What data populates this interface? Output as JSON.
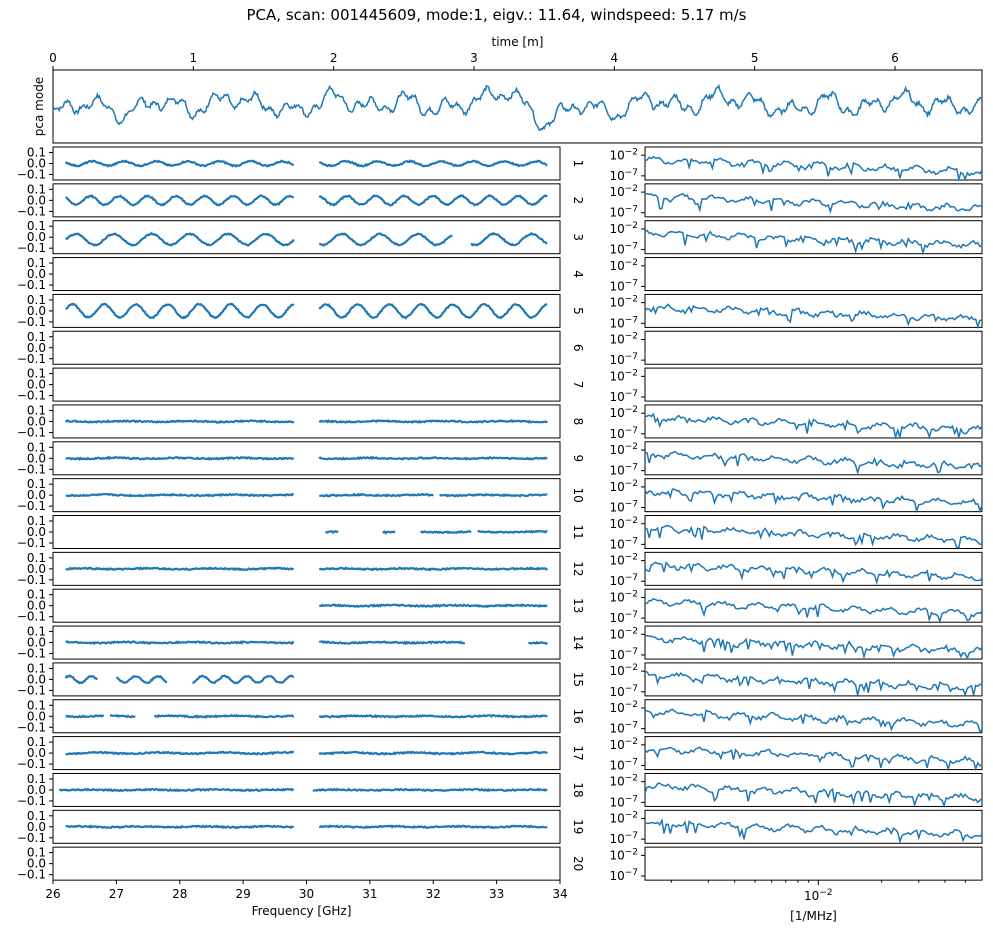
{
  "title": "PCA, scan: 001445609, mode:1, eigv.: 11.64, windspeed: 5.17 m/s",
  "colors": {
    "line": "#1f77b4",
    "axes": "#000000",
    "background": "#ffffff"
  },
  "chart_data": [
    {
      "type": "line",
      "panel": "pca-mode-timeseries",
      "xlabel": "time [m]",
      "ylabel": "pca mode",
      "xlim": [
        0,
        6.62
      ],
      "xticks": [
        "0",
        "1",
        "2",
        "3",
        "4",
        "5",
        "6"
      ],
      "xtick_values": [
        0,
        1,
        2,
        3,
        4,
        5,
        6
      ],
      "x_axis_position": "top",
      "yticks": [],
      "series": [
        {
          "x": [
            0,
            0.25,
            0.5,
            0.75,
            1.0,
            1.25,
            1.5,
            1.75,
            2.0,
            2.25,
            2.5,
            2.75,
            3.0,
            3.25,
            3.5,
            3.75,
            4.0,
            4.25,
            4.5,
            4.75,
            5.0,
            5.25,
            5.5,
            5.75,
            6.0,
            6.25,
            6.5
          ],
          "y": [
            -0.4,
            0.3,
            -0.5,
            0.4,
            -0.2,
            0.5,
            0.1,
            -0.3,
            0.6,
            -0.1,
            0.4,
            -0.2,
            0.3,
            0.9,
            -1.0,
            0.2,
            -0.4,
            0.5,
            -0.1,
            0.6,
            0.2,
            -0.3,
            0.4,
            -0.2,
            0.5,
            0.1,
            0.0
          ]
        }
      ]
    },
    {
      "type": "line",
      "panel": "feed-components-vs-frequency",
      "xlabel": "Frequency [GHz]",
      "xlim": [
        26,
        34
      ],
      "xticks": [
        "26",
        "27",
        "28",
        "29",
        "30",
        "31",
        "32",
        "33",
        "34"
      ],
      "xtick_values": [
        26,
        27,
        28,
        29,
        30,
        31,
        32,
        33,
        34
      ],
      "ylim": [
        -0.15,
        0.15
      ],
      "yticks": [
        "0.1",
        "0.0",
        "−0.1"
      ],
      "ytick_values": [
        0.1,
        0.0,
        -0.1
      ],
      "feeds": [
        "1",
        "2",
        "3",
        "4",
        "5",
        "6",
        "7",
        "8",
        "9",
        "10",
        "11",
        "12",
        "13",
        "14",
        "15",
        "16",
        "17",
        "18",
        "19",
        "20"
      ],
      "series": [
        {
          "name": "1",
          "segments": [
            [
              26.2,
              29.8
            ],
            [
              30.2,
              33.8
            ]
          ],
          "amplitude": 0.02,
          "offset": 0.0,
          "period": 0.5
        },
        {
          "name": "2",
          "segments": [
            [
              26.2,
              29.8
            ],
            [
              30.2,
              33.8
            ]
          ],
          "amplitude": 0.04,
          "offset": 0.0,
          "period": 0.45
        },
        {
          "name": "3",
          "segments": [
            [
              26.2,
              29.8
            ],
            [
              30.2,
              32.3
            ],
            [
              32.6,
              33.8
            ]
          ],
          "amplitude": 0.05,
          "offset": -0.02,
          "period": 0.6
        },
        {
          "name": "4",
          "segments": [],
          "amplitude": 0.0,
          "offset": 0.0,
          "period": 1
        },
        {
          "name": "5",
          "segments": [
            [
              26.2,
              29.8
            ],
            [
              30.2,
              33.8
            ]
          ],
          "amplitude": 0.06,
          "offset": 0.0,
          "period": 0.5
        },
        {
          "name": "6",
          "segments": [],
          "amplitude": 0.0,
          "offset": 0.0,
          "period": 1
        },
        {
          "name": "7",
          "segments": [],
          "amplitude": 0.0,
          "offset": 0.0,
          "period": 1
        },
        {
          "name": "8",
          "segments": [
            [
              26.2,
              29.8
            ],
            [
              30.2,
              33.8
            ]
          ],
          "amplitude": 0.004,
          "offset": 0.0,
          "period": 1
        },
        {
          "name": "9",
          "segments": [
            [
              26.2,
              29.8
            ],
            [
              30.2,
              33.8
            ]
          ],
          "amplitude": 0.004,
          "offset": 0.0,
          "period": 1
        },
        {
          "name": "10",
          "segments": [
            [
              26.2,
              29.8
            ],
            [
              30.2,
              32.0
            ],
            [
              32.1,
              33.8
            ]
          ],
          "amplitude": 0.004,
          "offset": 0.0,
          "period": 1
        },
        {
          "name": "11",
          "segments": [
            [
              30.3,
              30.5
            ],
            [
              31.2,
              31.4
            ],
            [
              31.8,
              32.6
            ],
            [
              32.7,
              33.8
            ]
          ],
          "amplitude": 0.004,
          "offset": 0.0,
          "period": 1
        },
        {
          "name": "12",
          "segments": [
            [
              26.2,
              29.8
            ],
            [
              30.2,
              33.8
            ]
          ],
          "amplitude": 0.004,
          "offset": 0.0,
          "period": 1
        },
        {
          "name": "13",
          "segments": [
            [
              30.2,
              33.8
            ]
          ],
          "amplitude": 0.004,
          "offset": 0.0,
          "period": 1
        },
        {
          "name": "14",
          "segments": [
            [
              26.2,
              29.8
            ],
            [
              30.2,
              32.5
            ],
            [
              33.5,
              33.8
            ]
          ],
          "amplitude": 0.004,
          "offset": 0.0,
          "period": 1
        },
        {
          "name": "15",
          "segments": [
            [
              26.2,
              26.7
            ],
            [
              27.0,
              27.8
            ],
            [
              28.2,
              29.8
            ]
          ],
          "amplitude": 0.03,
          "offset": 0.0,
          "period": 0.35
        },
        {
          "name": "16",
          "segments": [
            [
              26.2,
              26.8
            ],
            [
              26.9,
              27.3
            ],
            [
              27.6,
              29.8
            ],
            [
              30.2,
              33.8
            ]
          ],
          "amplitude": 0.004,
          "offset": 0.0,
          "period": 1
        },
        {
          "name": "17",
          "segments": [
            [
              26.2,
              29.8
            ],
            [
              30.2,
              33.8
            ]
          ],
          "amplitude": 0.006,
          "offset": 0.0,
          "period": 1
        },
        {
          "name": "18",
          "segments": [
            [
              26.1,
              29.8
            ],
            [
              30.1,
              33.8
            ]
          ],
          "amplitude": 0.003,
          "offset": 0.0,
          "period": 1
        },
        {
          "name": "19",
          "segments": [
            [
              26.2,
              29.8
            ],
            [
              30.2,
              33.8
            ]
          ],
          "amplitude": 0.004,
          "offset": 0.0,
          "period": 1
        },
        {
          "name": "20",
          "segments": [],
          "amplitude": 0.0,
          "offset": 0.0,
          "period": 1
        }
      ]
    },
    {
      "type": "line",
      "panel": "feed-power-spectra",
      "xlabel": "[1/MHz]",
      "x_scale": "log",
      "xlim": [
        0.0015,
        0.06
      ],
      "xticks": [
        "10^-2"
      ],
      "xtick_values": [
        0.01
      ],
      "y_scale": "log",
      "ylim": [
        1e-08,
        1
      ],
      "yticks": [
        "10^-2",
        "10^-7"
      ],
      "ytick_values": [
        0.01,
        1e-07
      ],
      "series_empty": [
        "4",
        "6",
        "7",
        "20"
      ]
    }
  ]
}
